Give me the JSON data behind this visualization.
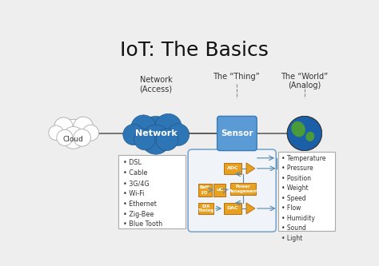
{
  "title": "IoT: The Basics",
  "bg_color": "#eeeeee",
  "title_color": "#111111",
  "labels": {
    "network_access": "Network\n(Access)",
    "the_thing": "The “Thing”",
    "the_world": "The “World”\n(Analog)",
    "cloud": "Cloud",
    "network": "Network",
    "sensor": "Sensor"
  },
  "network_list": "• DSL\n• Cable\n• 3G/4G\n• Wi-Fi\n• Ethernet\n• Zig-Bee\n• Blue Tooth",
  "world_list": "• Temperature\n• Pressure\n• Position\n• Weight\n• Speed\n• Flow\n• Humidity\n• Sound\n• Light",
  "orange": "#E8A020",
  "sensor_blue": "#5B9BD5",
  "network_blue": "#2E75B6",
  "line_color": "#5588aa",
  "arrow_color": "#555555"
}
